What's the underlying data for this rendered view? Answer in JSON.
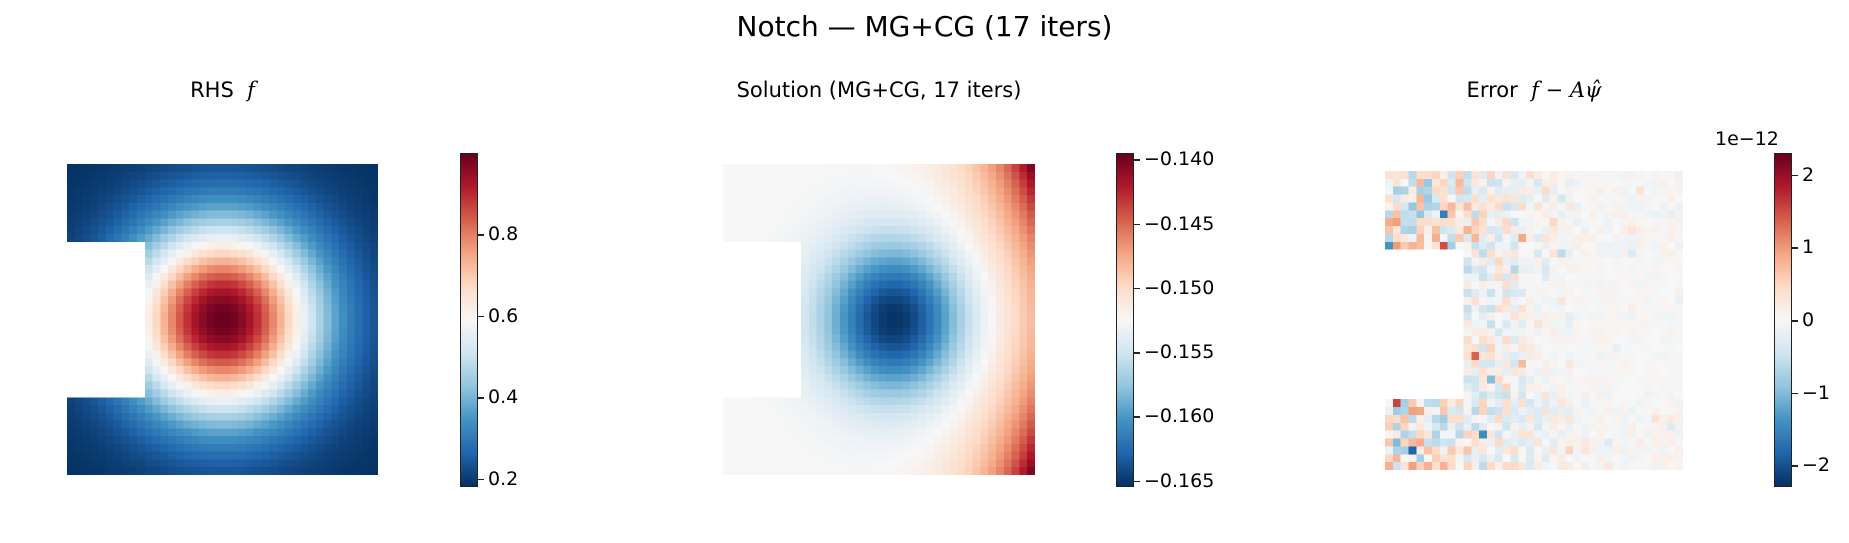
{
  "figure": {
    "suptitle": "Notch — MG+CG (17 iters)"
  },
  "panels": [
    {
      "title_text": "RHS",
      "title_math": "f",
      "colorbar": {
        "ticks": [
          "0.8",
          "0.6",
          "0.4",
          "0.2"
        ],
        "vmin": 0.18,
        "vmax": 1.0,
        "offset_label": ""
      }
    },
    {
      "title_text": "Solution  (MG+CG, 17 iters)",
      "title_math": "",
      "colorbar": {
        "ticks": [
          "−0.140",
          "−0.145",
          "−0.150",
          "−0.155",
          "−0.160",
          "−0.165"
        ],
        "vmin": -0.1655,
        "vmax": -0.1395,
        "offset_label": ""
      }
    },
    {
      "title_text": "Error",
      "title_math": "f − Aψ̂",
      "colorbar": {
        "ticks": [
          "2",
          "1",
          "0",
          "−1",
          "−2"
        ],
        "vmin": -2.3,
        "vmax": 2.3,
        "offset_label": "1e−12"
      }
    }
  ],
  "chart_data": [
    {
      "type": "heatmap",
      "title": "RHS f",
      "colormap": "RdBu_r",
      "grid": [
        40,
        40
      ],
      "domain": "unit square with rectangular notch cut from left edge (x<0.25, 0.25<y<0.75)",
      "description": "Smooth bump peaking (~1.0) near center-left of the remaining domain (~x=0.5,y=0.5), falling to ~0.18 at corners",
      "colorbar_ticks": [
        0.2,
        0.4,
        0.6,
        0.8
      ],
      "clim": [
        0.18,
        1.0
      ]
    },
    {
      "type": "heatmap",
      "title": "Solution (MG+CG, 17 iters)",
      "colormap": "RdBu_r",
      "grid": [
        40,
        40
      ],
      "description": "Minimum (~−0.165) near center; maximum (~−0.140) at right corners; left strip ~−0.155",
      "colorbar_ticks": [
        -0.14,
        -0.145,
        -0.15,
        -0.155,
        -0.16,
        -0.165
      ],
      "clim": [
        -0.1655,
        -0.1395
      ]
    },
    {
      "type": "heatmap",
      "title": "Error f − Aψ̂",
      "colormap": "RdBu_r",
      "grid": [
        38,
        38
      ],
      "description": "Random noise of order 1e-12, largest magnitude near the notch and left edge, decaying to near zero toward the right",
      "colorbar_ticks": [
        -2,
        -1,
        0,
        1,
        2
      ],
      "colorbar_scale": "1e-12",
      "clim": [
        -2.3,
        2.3
      ]
    }
  ]
}
